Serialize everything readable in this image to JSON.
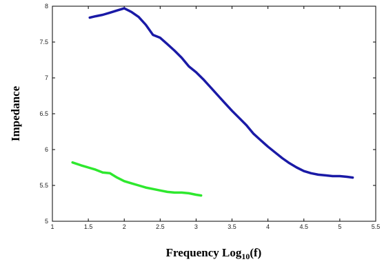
{
  "chart_data": {
    "type": "line",
    "title": "",
    "xlabel_main": "Frequency  Log",
    "xlabel_sub": "10",
    "xlabel_tail": "(f)",
    "ylabel": "Impedance",
    "xlim": [
      1,
      5.5
    ],
    "ylim": [
      5,
      8
    ],
    "xticks": [
      "1",
      "1.5",
      "2",
      "2.5",
      "3",
      "3.5",
      "4",
      "4.5",
      "5",
      "5.5"
    ],
    "yticks": [
      "5",
      "5.5",
      "6",
      "6.5",
      "7",
      "7.5",
      "8"
    ],
    "grid": false,
    "series": [
      {
        "color": "#1a1aa6",
        "x": [
          1.52,
          1.6,
          1.7,
          1.8,
          1.9,
          2.0,
          2.1,
          2.2,
          2.3,
          2.4,
          2.5,
          2.6,
          2.7,
          2.8,
          2.9,
          3.0,
          3.1,
          3.2,
          3.3,
          3.4,
          3.5,
          3.6,
          3.7,
          3.8,
          3.9,
          4.0,
          4.1,
          4.2,
          4.3,
          4.4,
          4.5,
          4.6,
          4.7,
          4.8,
          4.9,
          5.0,
          5.1,
          5.18
        ],
        "y": [
          7.84,
          7.86,
          7.88,
          7.91,
          7.94,
          7.97,
          7.92,
          7.85,
          7.74,
          7.6,
          7.56,
          7.47,
          7.38,
          7.28,
          7.16,
          7.08,
          6.98,
          6.87,
          6.76,
          6.65,
          6.54,
          6.44,
          6.34,
          6.22,
          6.13,
          6.04,
          5.96,
          5.88,
          5.81,
          5.75,
          5.7,
          5.67,
          5.65,
          5.64,
          5.63,
          5.63,
          5.62,
          5.61
        ]
      },
      {
        "color": "#2ee82e",
        "x": [
          1.28,
          1.4,
          1.5,
          1.6,
          1.7,
          1.8,
          1.9,
          2.0,
          2.1,
          2.2,
          2.3,
          2.4,
          2.5,
          2.6,
          2.7,
          2.8,
          2.9,
          3.0,
          3.07
        ],
        "y": [
          5.82,
          5.78,
          5.75,
          5.72,
          5.68,
          5.67,
          5.61,
          5.56,
          5.53,
          5.5,
          5.47,
          5.45,
          5.43,
          5.41,
          5.4,
          5.4,
          5.39,
          5.37,
          5.36
        ]
      }
    ]
  }
}
